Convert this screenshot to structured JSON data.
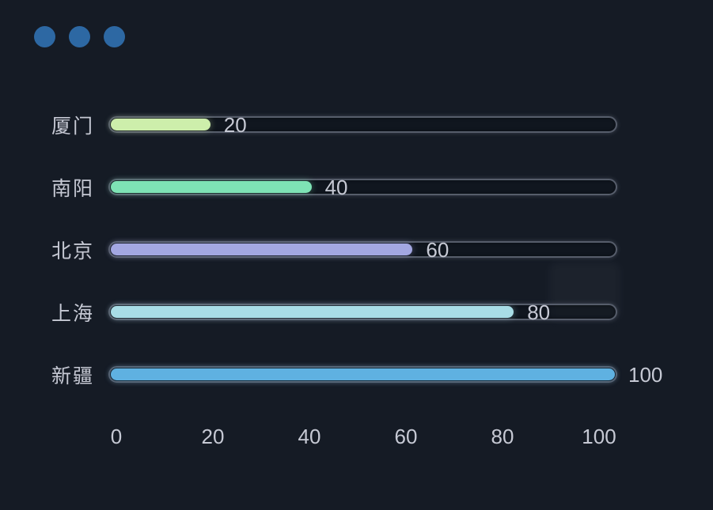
{
  "colors": {
    "background": "#151b25",
    "window_dot": "#2d68a3",
    "text": "#c6c9d4",
    "track_border": "#565d6b"
  },
  "window_controls": {
    "dot_count": 3
  },
  "chart_data": {
    "type": "bar",
    "orientation": "horizontal",
    "categories": [
      "厦门",
      "南阳",
      "北京",
      "上海",
      "新疆"
    ],
    "values": [
      20,
      40,
      60,
      80,
      100
    ],
    "value_labels": [
      "20",
      "40",
      "60",
      "80",
      "100"
    ],
    "bar_colors": [
      "#cdeeab",
      "#7ee3b5",
      "#a3a7e2",
      "#a8dde6",
      "#5fb1e1"
    ],
    "x_ticks": [
      "0",
      "20",
      "40",
      "60",
      "80",
      "100"
    ],
    "xlim": [
      0,
      100
    ],
    "grid": false,
    "legend": null
  }
}
